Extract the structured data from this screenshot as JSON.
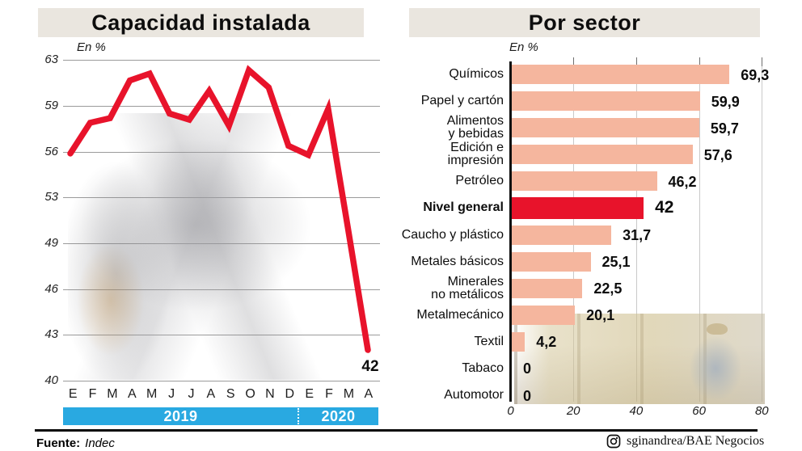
{
  "chart_data": [
    {
      "type": "line",
      "title": "Capacidad instalada",
      "unit": "En %",
      "x": [
        "E",
        "F",
        "M",
        "A",
        "M",
        "J",
        "J",
        "A",
        "S",
        "O",
        "N",
        "D",
        "E",
        "F",
        "M",
        "A"
      ],
      "year_groups": [
        {
          "label": "2019",
          "months": 12
        },
        {
          "label": "2020",
          "months": 4
        }
      ],
      "values": [
        55.9,
        57.9,
        58.2,
        61.2,
        61.8,
        58.5,
        58.1,
        60.3,
        57.7,
        62.1,
        60.6,
        56.4,
        55.8,
        58.8,
        50.3,
        42
      ],
      "y_ticks": [
        63,
        59,
        56,
        53,
        49,
        46,
        43,
        40
      ],
      "last_point_label": "42",
      "line_color": "#e8132b",
      "grid": true
    },
    {
      "type": "bar",
      "orientation": "horizontal",
      "title": "Por sector",
      "unit": "En %",
      "x_ticks": [
        0,
        20,
        40,
        60,
        80
      ],
      "xlim": [
        0,
        80
      ],
      "rows": [
        {
          "label": "Químicos",
          "value": 69.3,
          "display": "69,3",
          "highlight": false
        },
        {
          "label": "Papel y cartón",
          "value": 59.9,
          "display": "59,9",
          "highlight": false
        },
        {
          "label": "Alimentos\ny bebidas",
          "value": 59.7,
          "display": "59,7",
          "highlight": false
        },
        {
          "label": "Edición e\nimpresión",
          "value": 57.6,
          "display": "57,6",
          "highlight": false
        },
        {
          "label": "Petróleo",
          "value": 46.2,
          "display": "46,2",
          "highlight": false
        },
        {
          "label": "Nivel general",
          "value": 42,
          "display": "42",
          "highlight": true
        },
        {
          "label": "Caucho y plástico",
          "value": 31.7,
          "display": "31,7",
          "highlight": false
        },
        {
          "label": "Metales básicos",
          "value": 25.1,
          "display": "25,1",
          "highlight": false
        },
        {
          "label": "Minerales\nno metálicos",
          "value": 22.5,
          "display": "22,5",
          "highlight": false
        },
        {
          "label": "Metalmecánico",
          "value": 20.1,
          "display": "20,1",
          "highlight": false
        },
        {
          "label": "Textil",
          "value": 4.2,
          "display": "4,2",
          "highlight": false
        },
        {
          "label": "Tabaco",
          "value": 0,
          "display": "0",
          "highlight": false
        },
        {
          "label": "Automotor",
          "value": 0,
          "display": "0",
          "highlight": false
        }
      ],
      "bar_color": "#f5b69e",
      "highlight_color": "#e8132b"
    }
  ],
  "footer": {
    "source_label": "Fuente:",
    "source_value": "Indec",
    "credit": "sginandrea/BAE Negocios",
    "credit_icon": "instagram-icon"
  },
  "colors": {
    "accent_red": "#e8132b",
    "salmon": "#f5b69e",
    "cyan_band": "#29a9e1",
    "title_band_bg": "#eae6df"
  }
}
